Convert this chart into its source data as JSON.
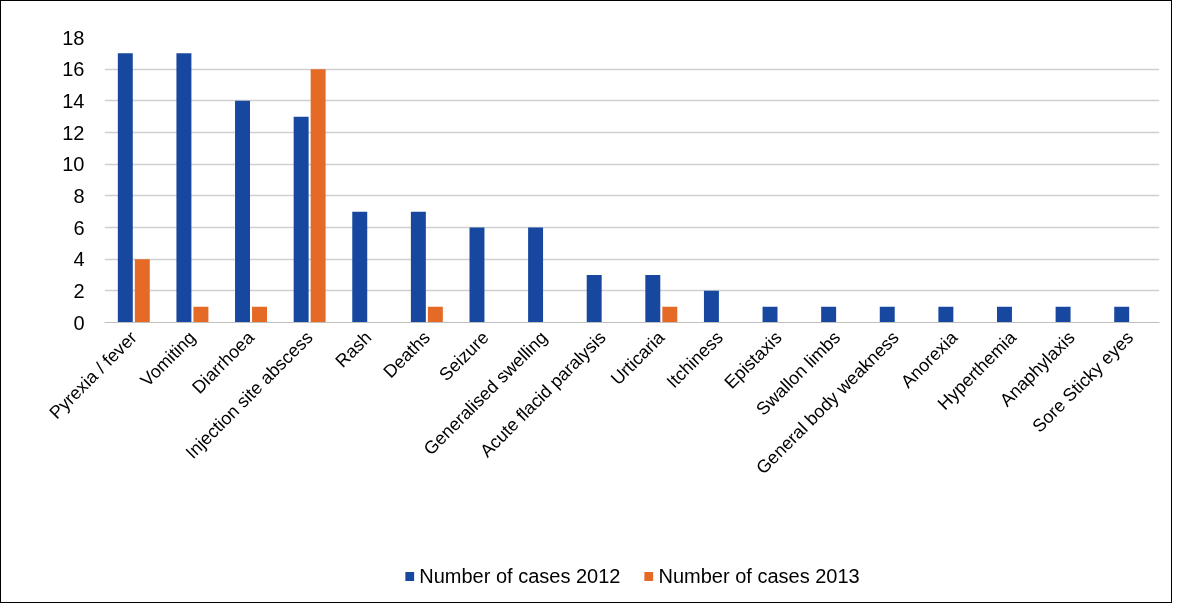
{
  "chart_data": {
    "type": "bar",
    "categories": [
      "Pyrexia / fever",
      "Vomiting",
      "Diarrhoea",
      "Injection site abscess",
      "Rash",
      "Deaths",
      "Seizure",
      "Generalised swelling",
      "Acute flacid paralysis",
      "Urticaria",
      "Itchiness",
      "Epistaxis",
      "Swallon limbs",
      "General body weakness",
      "Anorexia",
      "Hyperthemia",
      "Anaphylaxis",
      "Sore Sticky eyes"
    ],
    "series": [
      {
        "name": "Number of cases 2012",
        "color": "#17479e",
        "values": [
          17,
          17,
          14,
          13,
          7,
          7,
          6,
          6,
          3,
          3,
          2,
          1,
          1,
          1,
          1,
          1,
          1,
          1
        ]
      },
      {
        "name": "Number of cases 2013",
        "color": "#e46a25",
        "values": [
          4,
          1,
          1,
          16,
          null,
          1,
          null,
          null,
          null,
          1,
          null,
          null,
          null,
          null,
          null,
          null,
          null,
          null
        ]
      }
    ],
    "ylim": [
      0,
      18
    ],
    "yticks": [
      0,
      2,
      4,
      6,
      8,
      10,
      12,
      14,
      16,
      18
    ],
    "grid": "y",
    "legend": "bottom"
  }
}
